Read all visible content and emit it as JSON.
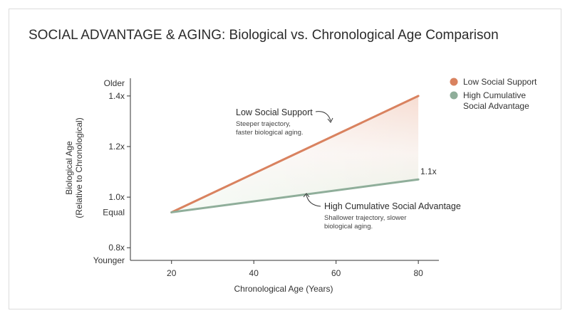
{
  "chart_data": {
    "type": "line",
    "title": "SOCIAL ADVANTAGE & AGING: Biological vs. Chronological Age Comparison",
    "xlabel": "Chronological Age (Years)",
    "ylabel_line1": "Biological Age",
    "ylabel_line2": "(Relative to Chronological)",
    "xlim": [
      10,
      85
    ],
    "ylim": [
      0.75,
      1.47
    ],
    "x_ticks": [
      20,
      40,
      60,
      80
    ],
    "y_ticks": [
      {
        "value": 1.4,
        "label": "1.4x"
      },
      {
        "value": 1.2,
        "label": "1.2x"
      },
      {
        "value": 1.0,
        "label": "1.0x"
      },
      {
        "value": 0.8,
        "label": "0.8x"
      }
    ],
    "y_text_labels": [
      {
        "value": 1.45,
        "label": "Older"
      },
      {
        "value": 0.94,
        "label": "Equal"
      },
      {
        "value": 0.75,
        "label": "Younger"
      }
    ],
    "series": [
      {
        "name": "Low Social Support",
        "color": "#d9825f",
        "x": [
          20,
          80
        ],
        "y": [
          0.94,
          1.4
        ]
      },
      {
        "name": "High Cumulative Social Advantage",
        "color": "#8fae9a",
        "x": [
          20,
          80
        ],
        "y": [
          0.94,
          1.07
        ]
      }
    ],
    "end_label": "1.1x",
    "annotations": {
      "low": {
        "heading": "Low Social Support",
        "line1": "Steeper trajectory,",
        "line2": "faster biological aging."
      },
      "high": {
        "heading": "High Cumulative Social Advantage",
        "line1": "Shallower trajectory, slower",
        "line2": "biological aging."
      }
    },
    "legend": {
      "position": "top-right",
      "items": [
        {
          "line1": "Low Social Support",
          "line2": "",
          "color": "#d9825f"
        },
        {
          "line1": "High Cumulative",
          "line2": "Social Advantage",
          "color": "#8fae9a"
        }
      ]
    },
    "grid": false
  }
}
